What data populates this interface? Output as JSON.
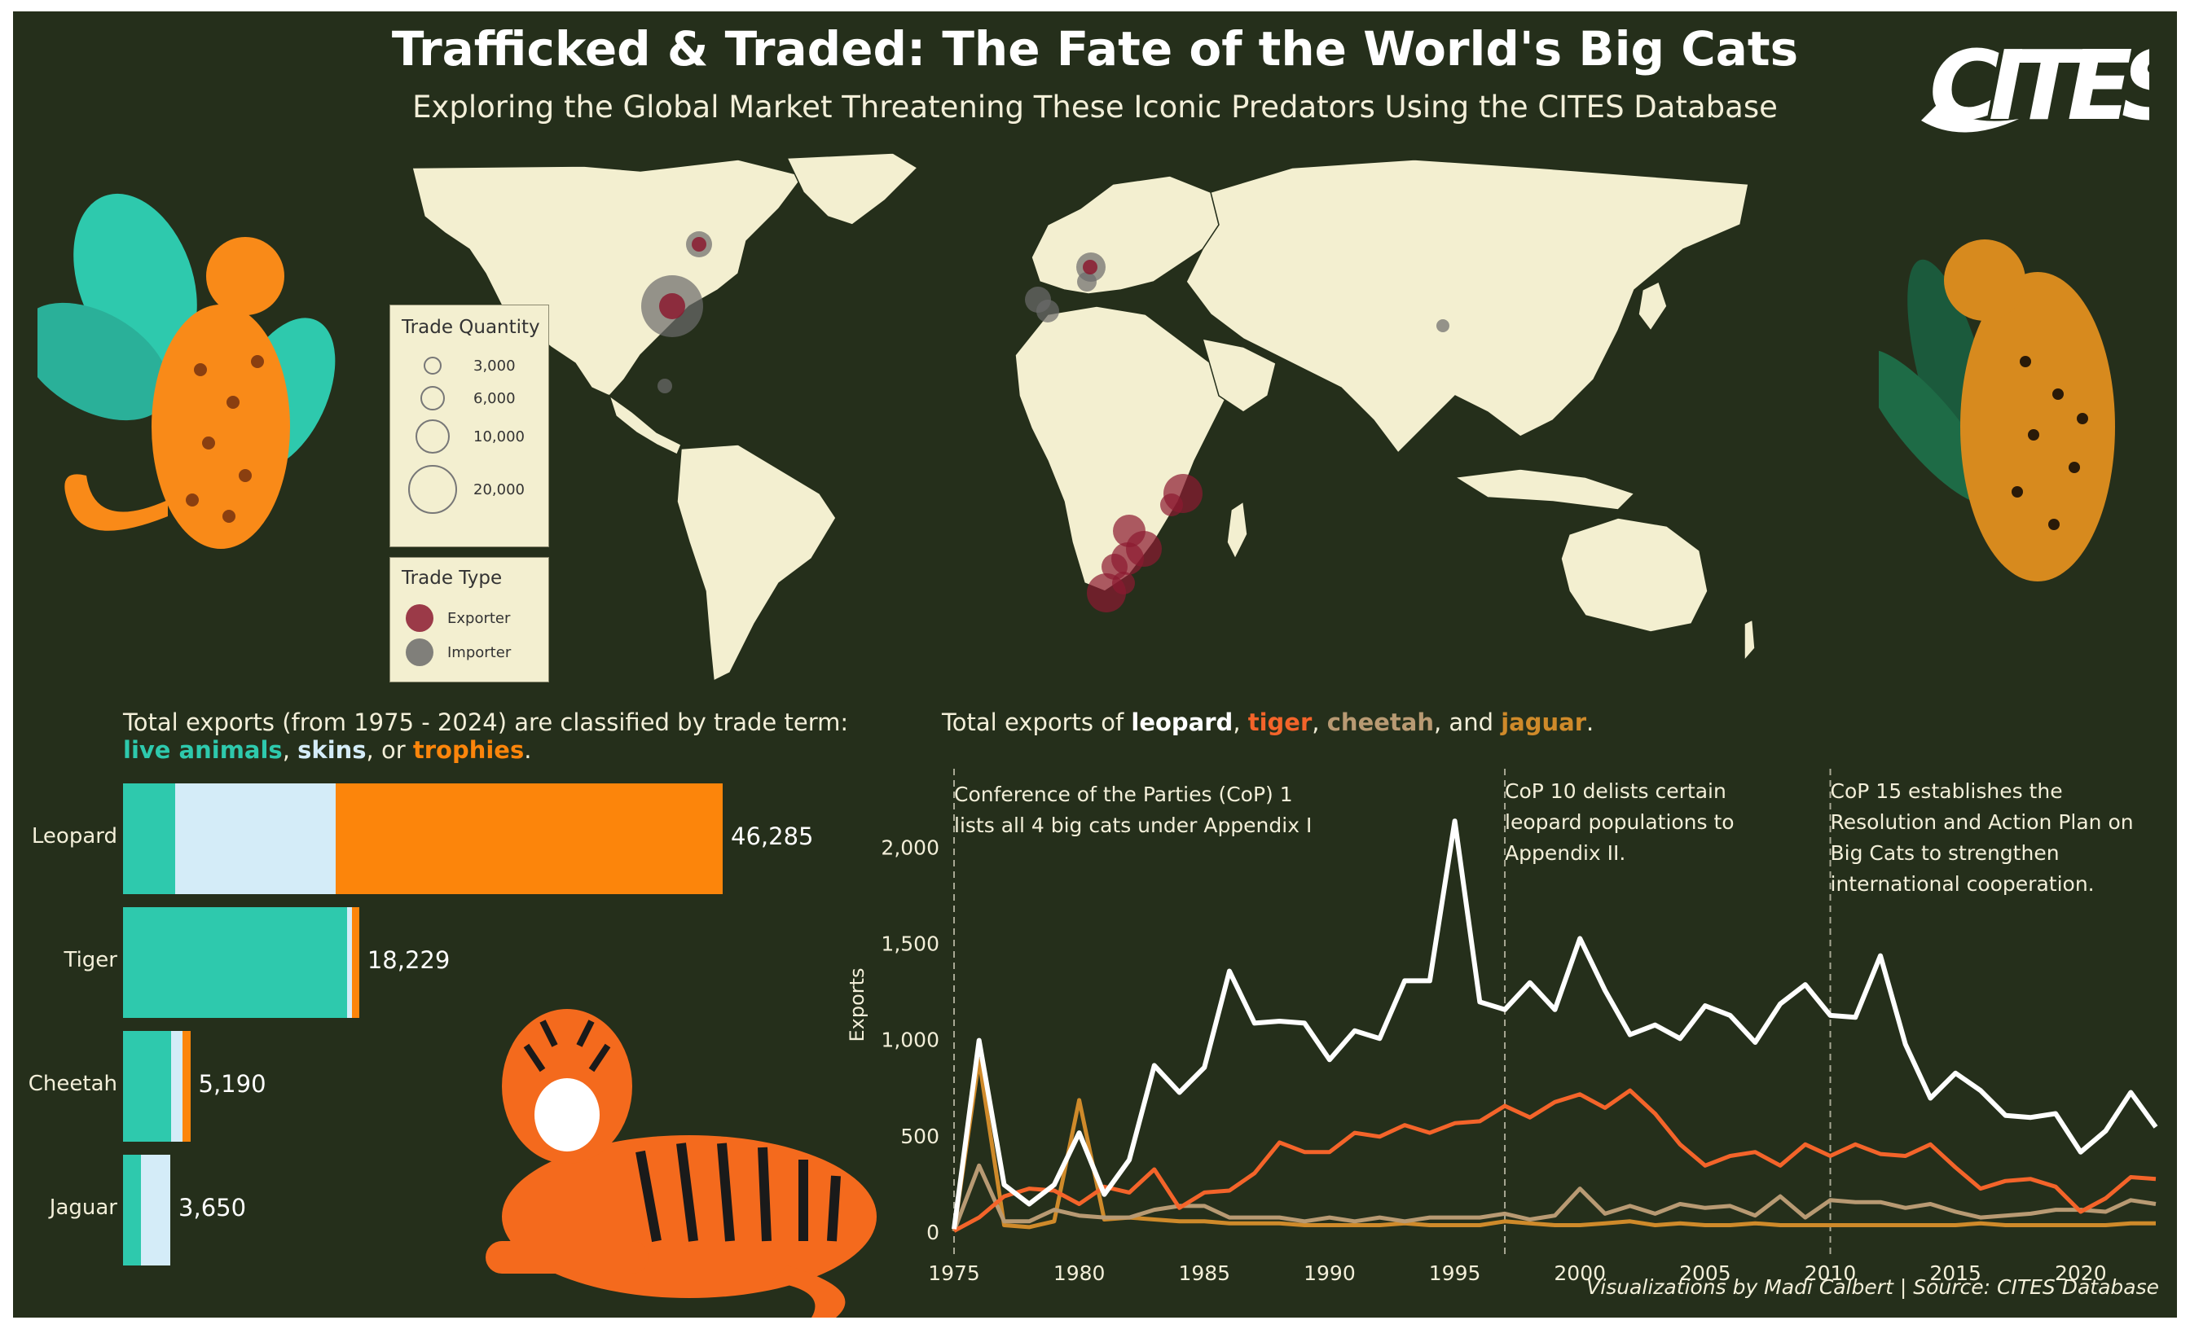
{
  "header": {
    "title": "Trafficked & Traded: The Fate of the World's Big Cats",
    "subtitle": "Exploring the Global Market Threatening These Iconic Predators Using the CITES Database",
    "logo_text": "CITES"
  },
  "map_legend": {
    "quantity_title": "Trade Quantity",
    "quantity_items": [
      "3,000",
      "6,000",
      "10,000",
      "20,000"
    ],
    "type_title": "Trade Type",
    "type_items": [
      "Exporter",
      "Importer"
    ]
  },
  "colors": {
    "background": "#252f1b",
    "land": "#f3efd0",
    "exporter": "#8b1a30",
    "importer": "#6b6b6b",
    "leopard": "#ffffff",
    "tiger": "#f4642a",
    "cheetah": "#b89a73",
    "jaguar": "#cf8a2a",
    "live_animals": "#2ec9ad",
    "skins": "#d4ecf8",
    "trophies": "#fc850b"
  },
  "bar_caption": {
    "line1": "Total exports (from 1975 - 2024) are classified by trade term:",
    "live": "live animals",
    "sep1": ", ",
    "skins": "skins",
    "sep2": ", or ",
    "trophies": "trophies",
    "end": "."
  },
  "line_caption": {
    "pre": "Total exports of ",
    "leopard": "leopard",
    "c1": ", ",
    "tiger": "tiger",
    "c2": ", ",
    "cheetah": "cheetah",
    "c3": ", and ",
    "jaguar": "jaguar",
    "end": "."
  },
  "annotations": [
    {
      "year": 1975,
      "lines": [
        "Conference of the Parties (CoP) 1",
        "lists all 4 big cats under Appendix I"
      ]
    },
    {
      "year": 1997,
      "lines": [
        "CoP 10 delists certain",
        "leopard populations to",
        "Appendix II."
      ]
    },
    {
      "year": 2010,
      "lines": [
        "CoP 15 establishes the",
        "Resolution and Action Plan on",
        "Big Cats to strengthen",
        "international cooperation."
      ]
    }
  ],
  "credit": "Visualizations by Madi Calbert | Source: CITES Database",
  "chart_data": [
    {
      "type": "bar",
      "orientation": "horizontal",
      "stacked": true,
      "categories": [
        "Leopard",
        "Tiger",
        "Cheetah",
        "Jaguar"
      ],
      "totals": [
        "46,285",
        "18,229",
        "5,190",
        "3,650"
      ],
      "series": [
        {
          "name": "live animals",
          "values": [
            4000,
            17300,
            3700,
            1400
          ]
        },
        {
          "name": "skins",
          "values": [
            12400,
            400,
            900,
            2250
          ]
        },
        {
          "name": "trophies",
          "values": [
            29885,
            529,
            590,
            0
          ]
        }
      ],
      "xlim": [
        0,
        46285
      ]
    },
    {
      "type": "line",
      "x": [
        1975,
        1976,
        1977,
        1978,
        1979,
        1980,
        1981,
        1982,
        1983,
        1984,
        1985,
        1986,
        1987,
        1988,
        1989,
        1990,
        1991,
        1992,
        1993,
        1994,
        1995,
        1996,
        1997,
        1998,
        1999,
        2000,
        2001,
        2002,
        2003,
        2004,
        2005,
        2006,
        2007,
        2008,
        2009,
        2010,
        2011,
        2012,
        2013,
        2014,
        2015,
        2016,
        2017,
        2018,
        2019,
        2020,
        2021,
        2022,
        2023
      ],
      "series": [
        {
          "name": "leopard",
          "values": [
            20,
            1000,
            250,
            150,
            250,
            520,
            200,
            380,
            870,
            730,
            860,
            1360,
            1090,
            1100,
            1090,
            900,
            1050,
            1010,
            1310,
            1310,
            2140,
            1200,
            1160,
            1300,
            1160,
            1530,
            1260,
            1030,
            1080,
            1010,
            1180,
            1130,
            990,
            1190,
            1290,
            1130,
            1120,
            1440,
            980,
            700,
            830,
            740,
            610,
            600,
            620,
            420,
            530,
            730,
            550
          ]
        },
        {
          "name": "tiger",
          "values": [
            10,
            80,
            190,
            230,
            220,
            150,
            240,
            210,
            330,
            130,
            210,
            220,
            310,
            470,
            420,
            420,
            520,
            500,
            560,
            520,
            570,
            580,
            660,
            600,
            680,
            720,
            650,
            740,
            620,
            460,
            350,
            400,
            420,
            350,
            460,
            400,
            460,
            410,
            400,
            460,
            340,
            230,
            270,
            280,
            240,
            110,
            180,
            290,
            280
          ]
        },
        {
          "name": "cheetah",
          "values": [
            10,
            350,
            60,
            60,
            120,
            90,
            80,
            80,
            120,
            140,
            140,
            80,
            80,
            80,
            60,
            80,
            60,
            80,
            60,
            80,
            80,
            80,
            100,
            70,
            90,
            230,
            100,
            140,
            100,
            150,
            130,
            140,
            90,
            190,
            80,
            170,
            160,
            160,
            130,
            150,
            110,
            80,
            90,
            100,
            120,
            120,
            110,
            170,
            150
          ]
        },
        {
          "name": "jaguar",
          "values": [
            10,
            900,
            40,
            30,
            60,
            690,
            70,
            80,
            70,
            60,
            60,
            50,
            50,
            50,
            40,
            40,
            40,
            40,
            50,
            40,
            40,
            40,
            60,
            50,
            40,
            40,
            50,
            60,
            40,
            50,
            40,
            40,
            50,
            40,
            40,
            40,
            40,
            40,
            40,
            40,
            40,
            50,
            40,
            40,
            40,
            40,
            40,
            50,
            50
          ]
        }
      ],
      "xticks": [
        1975,
        1980,
        1985,
        1990,
        1995,
        2000,
        2005,
        2010,
        2015,
        2020
      ],
      "yticks": [
        "0",
        "500",
        "1,000",
        "1,500",
        "2,000"
      ],
      "ylabel": "Exports",
      "ylim": [
        0,
        2200
      ],
      "xlim": [
        1975,
        2023
      ]
    }
  ]
}
